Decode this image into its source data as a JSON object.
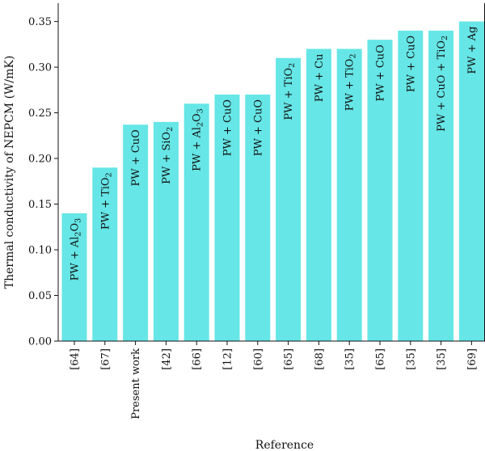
{
  "chart_data": {
    "type": "bar",
    "title": "",
    "xlabel": "Reference",
    "ylabel": "Thermal conductivity of NEPCM (W/mK)",
    "ylim": [
      0,
      0.37
    ],
    "yticks": [
      "0.00",
      "0.05",
      "0.10",
      "0.15",
      "0.20",
      "0.25",
      "0.30",
      "0.35"
    ],
    "grid": false,
    "bar_color": "#66E6E6",
    "categories": [
      "[64]",
      "[67]",
      "Present work",
      "[42]",
      "[66]",
      "[12]",
      "[60]",
      "[65]",
      "[68]",
      "[35]",
      "[65]",
      "[35]",
      "[35]",
      "[69]"
    ],
    "values": [
      0.14,
      0.19,
      0.237,
      0.24,
      0.26,
      0.27,
      0.27,
      0.31,
      0.32,
      0.32,
      0.33,
      0.34,
      0.34,
      0.35
    ],
    "bar_labels": [
      {
        "text": "PW + Al",
        "sub": "2",
        "tail": "O",
        "sub2": "3"
      },
      {
        "text": "PW + TiO",
        "sub": "2"
      },
      {
        "text": "PW + CuO"
      },
      {
        "text": "PW + SiO",
        "sub": "2"
      },
      {
        "text": "PW + Al",
        "sub": "2",
        "tail": "O",
        "sub2": "3"
      },
      {
        "text": "PW + CuO"
      },
      {
        "text": "PW + CuO"
      },
      {
        "text": "PW + TiO",
        "sub": "2"
      },
      {
        "text": "PW + Cu"
      },
      {
        "text": "PW + TiO",
        "sub": "2"
      },
      {
        "text": "PW + CuO"
      },
      {
        "text": "PW + CuO"
      },
      {
        "text": "PW + CuO + TiO",
        "sub": "2"
      },
      {
        "text": "PW + Ag"
      }
    ]
  }
}
